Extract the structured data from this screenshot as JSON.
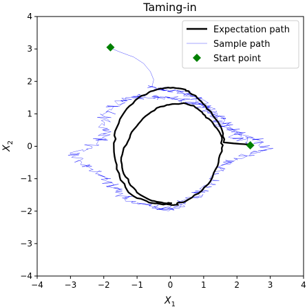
{
  "chart_data": {
    "type": "line",
    "title": "Taming-in",
    "xlabel": "X",
    "xlabel_sub": "1",
    "ylabel": "X",
    "ylabel_sub": "2",
    "xlim": [
      -4,
      4
    ],
    "ylim": [
      -4,
      4
    ],
    "xticks": [
      -4,
      -3,
      -2,
      -1,
      0,
      1,
      2,
      3,
      4
    ],
    "yticks": [
      -4,
      -3,
      -2,
      -1,
      0,
      1,
      2,
      3,
      4
    ],
    "xtick_labels": [
      "−4",
      "−3",
      "−2",
      "−1",
      "0",
      "1",
      "2",
      "3",
      "4"
    ],
    "ytick_labels": [
      "−4",
      "−3",
      "−2",
      "−1",
      "0",
      "1",
      "2",
      "3",
      "4"
    ],
    "grid": false,
    "legend_position": "upper right",
    "series": [
      {
        "name": "Expectation path",
        "color": "#000000",
        "kind": "line",
        "points": [
          [
            2.4,
            0.05
          ],
          [
            2.0,
            0.08
          ],
          [
            1.6,
            0.12
          ],
          [
            1.55,
            0.5
          ],
          [
            1.35,
            0.85
          ],
          [
            1.05,
            1.25
          ],
          [
            0.8,
            1.5
          ],
          [
            0.55,
            1.7
          ],
          [
            0.3,
            1.78
          ],
          [
            0.0,
            1.8
          ],
          [
            -0.3,
            1.78
          ],
          [
            -0.65,
            1.66
          ],
          [
            -1.05,
            1.42
          ],
          [
            -1.38,
            1.05
          ],
          [
            -1.6,
            0.6
          ],
          [
            -1.7,
            0.1
          ],
          [
            -1.65,
            -0.45
          ],
          [
            -1.52,
            -0.95
          ],
          [
            -1.3,
            -1.35
          ],
          [
            -1.0,
            -1.6
          ],
          [
            -0.65,
            -1.73
          ],
          [
            -0.3,
            -1.78
          ],
          [
            0.0,
            -1.8
          ],
          [
            0.2,
            -1.8
          ],
          [
            0.2,
            -1.76
          ],
          [
            0.45,
            -1.7
          ],
          [
            0.85,
            -1.45
          ],
          [
            1.2,
            -1.08
          ],
          [
            1.42,
            -0.6
          ],
          [
            1.55,
            -0.15
          ],
          [
            1.55,
            0.2
          ],
          [
            1.4,
            0.55
          ],
          [
            1.15,
            0.85
          ],
          [
            0.95,
            1.05
          ],
          [
            0.7,
            1.25
          ],
          [
            0.4,
            1.33
          ],
          [
            0.05,
            1.3
          ],
          [
            -0.3,
            1.22
          ],
          [
            -0.65,
            1.0
          ],
          [
            -0.95,
            0.7
          ],
          [
            -1.2,
            0.35
          ],
          [
            -1.4,
            -0.05
          ],
          [
            -1.48,
            -0.45
          ],
          [
            -1.4,
            -0.85
          ],
          [
            -1.2,
            -1.2
          ],
          [
            -0.9,
            -1.5
          ],
          [
            -0.55,
            -1.68
          ],
          [
            -0.2,
            -1.75
          ],
          [
            0.05,
            -1.75
          ]
        ]
      },
      {
        "name": "Sample path",
        "color": "#0000ff",
        "kind": "line",
        "points": [
          [
            -1.85,
            3.05
          ],
          [
            -1.5,
            2.9
          ],
          [
            -1.1,
            2.75
          ],
          [
            -0.8,
            2.55
          ],
          [
            -0.6,
            2.3
          ],
          [
            -0.5,
            2.05
          ],
          [
            -0.55,
            1.85
          ],
          [
            -0.3,
            1.75
          ],
          [
            0.1,
            1.72
          ],
          [
            0.5,
            1.62
          ],
          [
            0.9,
            1.45
          ],
          [
            1.2,
            1.2
          ],
          [
            1.45,
            0.9
          ],
          [
            1.75,
            0.6
          ],
          [
            2.1,
            0.4
          ],
          [
            2.6,
            0.2
          ],
          [
            2.9,
            -0.1
          ],
          [
            2.2,
            -0.3
          ],
          [
            1.7,
            -0.5
          ],
          [
            1.45,
            -0.85
          ],
          [
            1.2,
            -1.2
          ],
          [
            0.8,
            -1.5
          ],
          [
            0.4,
            -1.75
          ],
          [
            0.0,
            -1.95
          ],
          [
            -0.4,
            -1.9
          ],
          [
            -0.9,
            -1.75
          ],
          [
            -1.4,
            -1.55
          ],
          [
            -1.8,
            -1.2
          ],
          [
            -2.1,
            -0.8
          ],
          [
            -2.7,
            -0.5
          ],
          [
            -2.9,
            -0.2
          ],
          [
            -2.2,
            0.1
          ],
          [
            -1.9,
            0.45
          ],
          [
            -2.0,
            0.85
          ],
          [
            -1.75,
            1.2
          ],
          [
            -1.3,
            1.45
          ],
          [
            -0.8,
            1.55
          ],
          [
            -0.3,
            1.5
          ],
          [
            0.3,
            1.45
          ],
          [
            0.8,
            1.3
          ],
          [
            1.2,
            1.05
          ],
          [
            1.5,
            0.7
          ],
          [
            1.9,
            0.35
          ],
          [
            2.4,
            0.05
          ]
        ]
      },
      {
        "name": "Start point",
        "color": "#008000",
        "kind": "marker",
        "marker": "diamond",
        "points": [
          [
            -1.8,
            3.05
          ],
          [
            2.4,
            0.03
          ]
        ]
      }
    ]
  }
}
